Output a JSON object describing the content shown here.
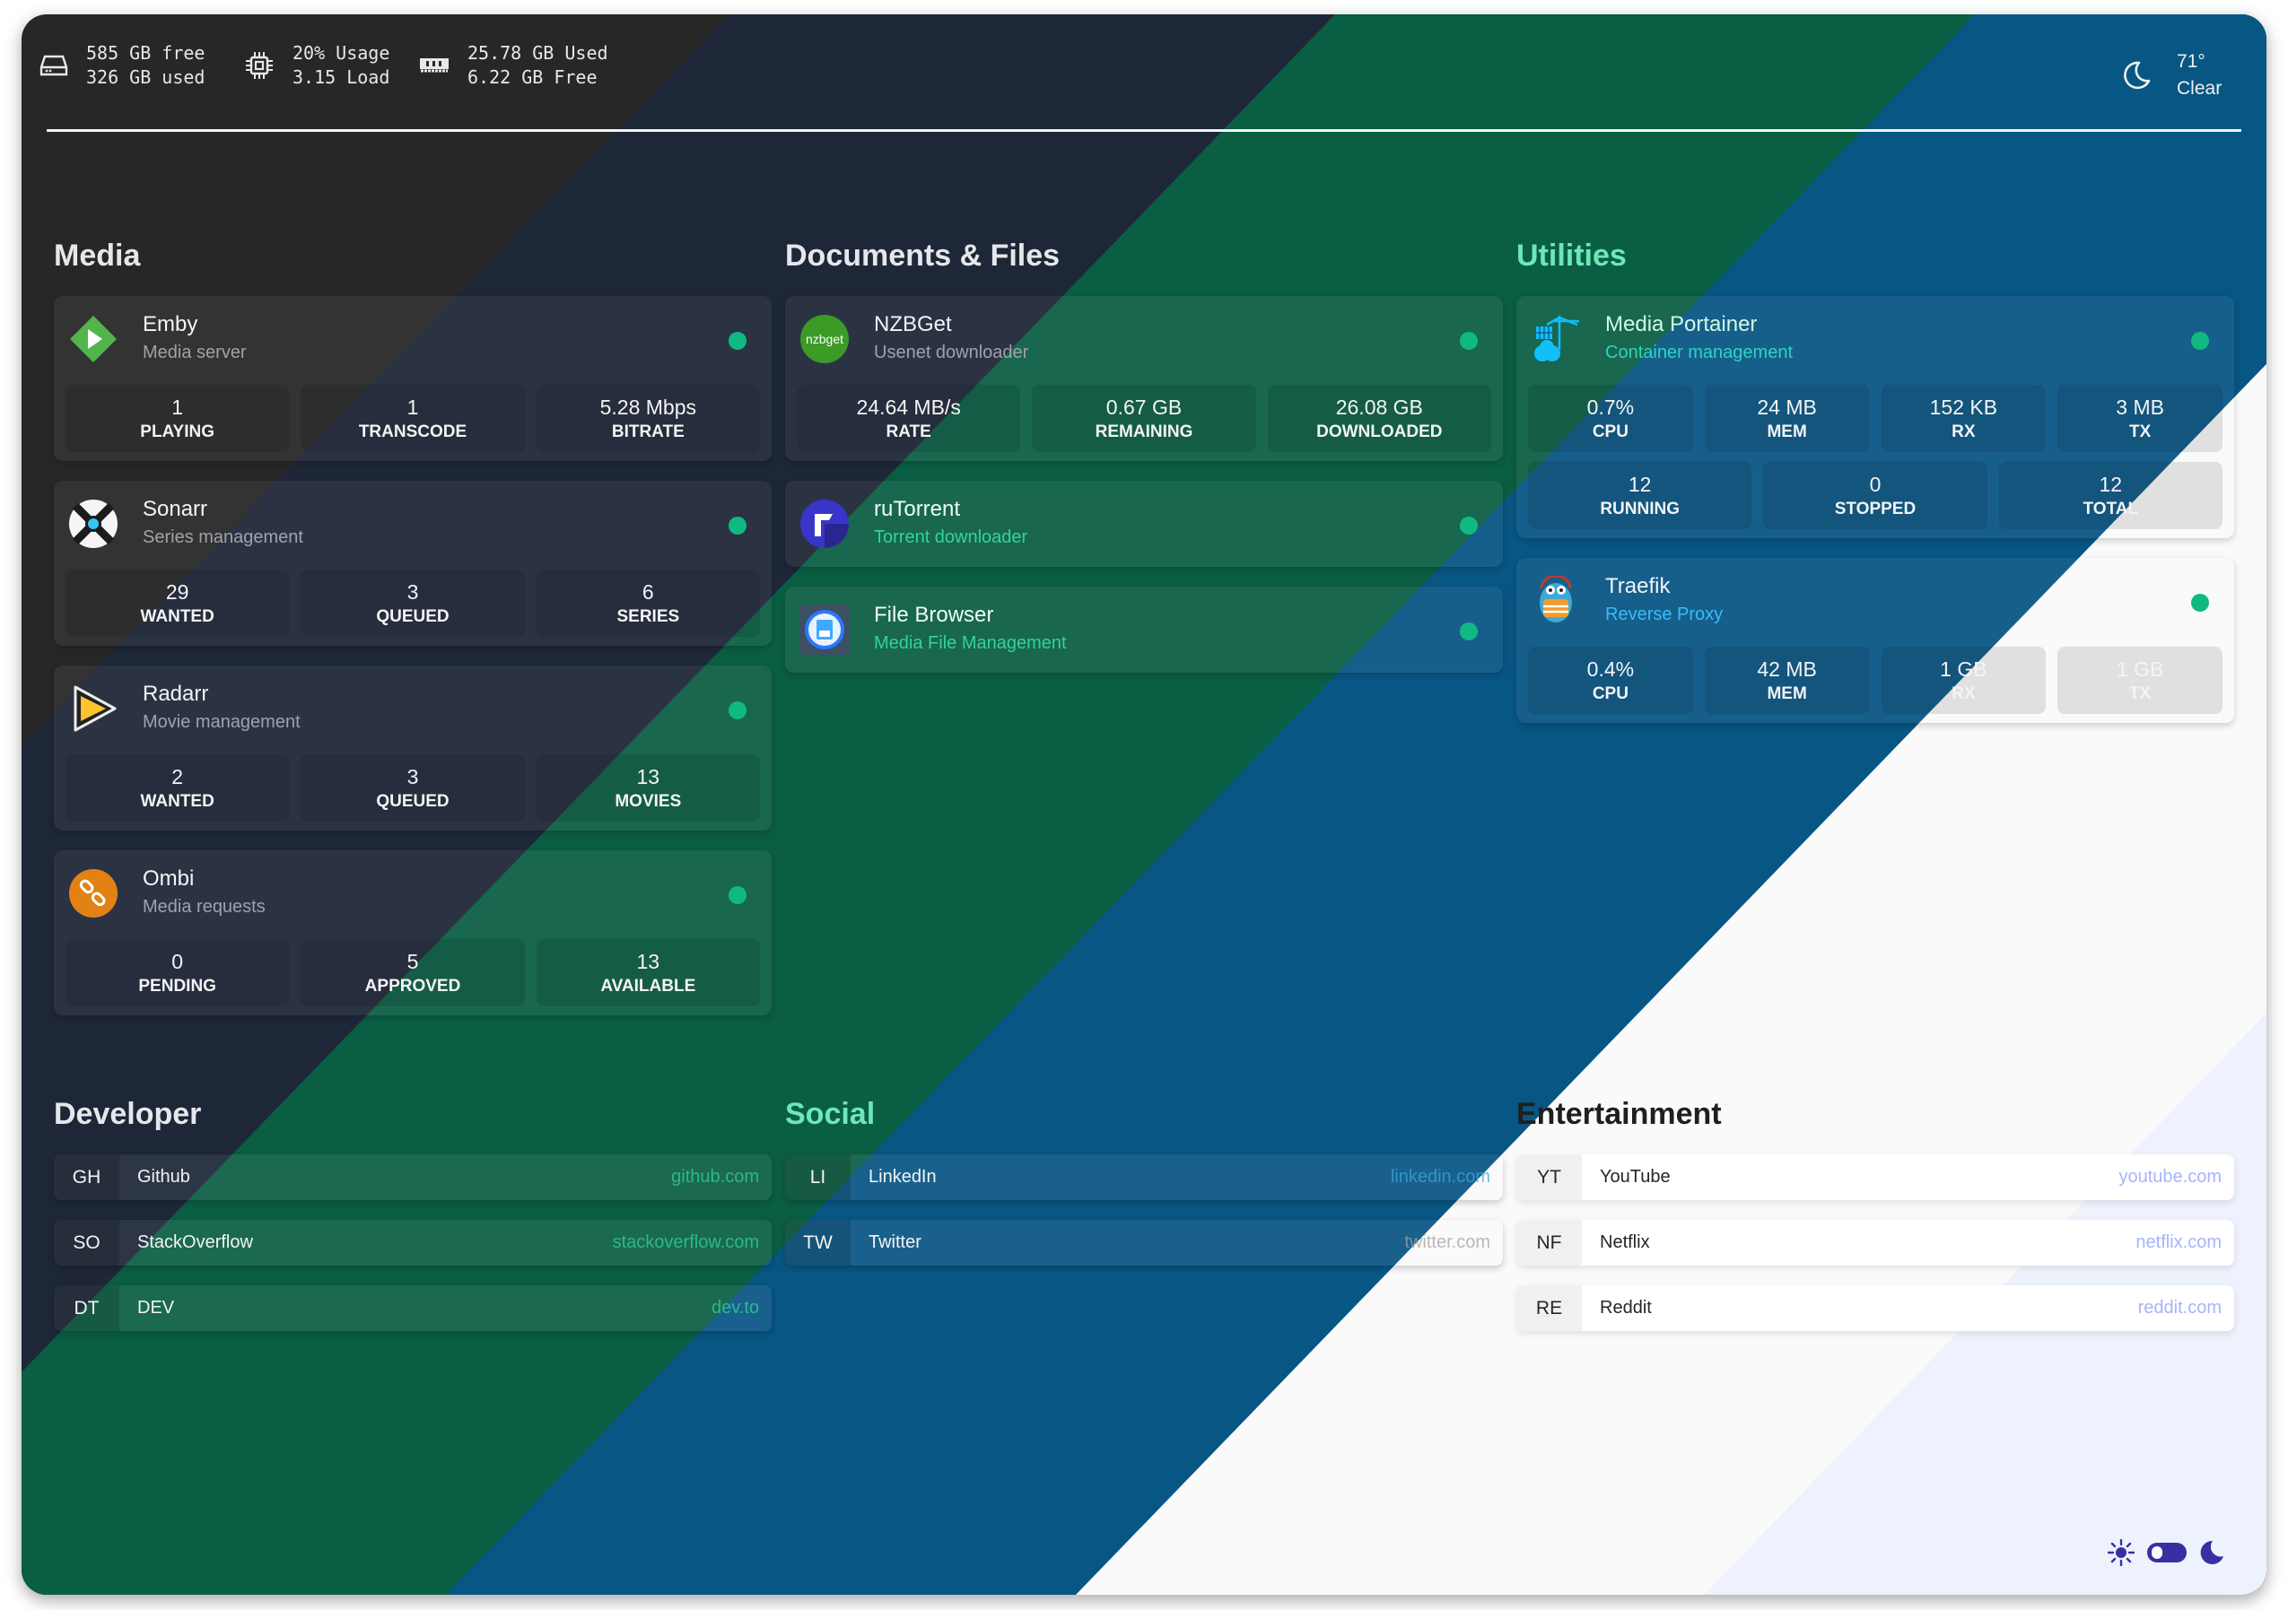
{
  "header": {
    "disk": {
      "icon": "hard-drive-icon",
      "line1": "585 GB free",
      "line2": "326 GB used"
    },
    "cpu": {
      "icon": "cpu-chip-icon",
      "line1": "20% Usage",
      "line2": "3.15 Load"
    },
    "memory": {
      "icon": "memory-icon",
      "line1": "25.78 GB Used",
      "line2": "6.22 GB Free"
    },
    "weather": {
      "icon": "moon-outline-icon",
      "temperature": "71°",
      "condition": "Clear"
    }
  },
  "colors": {
    "background_bands": [
      "#272727",
      "#1e293b",
      "#065f46",
      "#075985",
      "#fafafa",
      "#eef2ff"
    ],
    "status_online": "#10b981",
    "mint_accent": "#6ee7b7",
    "sky_accent": "#38bdf8",
    "indigo_accent": "#3730a3"
  },
  "sections": {
    "media": {
      "title": "Media",
      "services": [
        {
          "name": "Emby",
          "description": "Media server",
          "icon": "emby-icon",
          "status": "online",
          "stat_rows": [
            [
              {
                "value": "1",
                "label": "PLAYING"
              },
              {
                "value": "1",
                "label": "TRANSCODE"
              },
              {
                "value": "5.28 Mbps",
                "label": "BITRATE"
              }
            ]
          ]
        },
        {
          "name": "Sonarr",
          "description": "Series management",
          "icon": "sonarr-icon",
          "status": "online",
          "stat_rows": [
            [
              {
                "value": "29",
                "label": "WANTED"
              },
              {
                "value": "3",
                "label": "QUEUED"
              },
              {
                "value": "6",
                "label": "SERIES"
              }
            ]
          ]
        },
        {
          "name": "Radarr",
          "description": "Movie management",
          "icon": "radarr-icon",
          "status": "online",
          "stat_rows": [
            [
              {
                "value": "2",
                "label": "WANTED"
              },
              {
                "value": "3",
                "label": "QUEUED"
              },
              {
                "value": "13",
                "label": "MOVIES"
              }
            ]
          ]
        },
        {
          "name": "Ombi",
          "description": "Media requests",
          "icon": "ombi-icon",
          "status": "online",
          "stat_rows": [
            [
              {
                "value": "0",
                "label": "PENDING"
              },
              {
                "value": "5",
                "label": "APPROVED"
              },
              {
                "value": "13",
                "label": "AVAILABLE"
              }
            ]
          ]
        }
      ]
    },
    "documents": {
      "title": "Documents & Files",
      "services": [
        {
          "name": "NZBGet",
          "description": "Usenet downloader",
          "icon": "nzbget-icon",
          "logo_text": "nzbget",
          "status": "online",
          "stat_rows": [
            [
              {
                "value": "24.64 MB/s",
                "label": "RATE"
              },
              {
                "value": "0.67 GB",
                "label": "REMAINING"
              },
              {
                "value": "26.08 GB",
                "label": "DOWNLOADED"
              }
            ]
          ]
        },
        {
          "name": "ruTorrent",
          "description": "Torrent downloader",
          "icon": "rutorrent-icon",
          "status": "online",
          "stat_rows": []
        },
        {
          "name": "File Browser",
          "description": "Media File Management",
          "icon": "file-browser-icon",
          "status": "online",
          "stat_rows": []
        }
      ]
    },
    "utilities": {
      "title": "Utilities",
      "services": [
        {
          "name": "Media Portainer",
          "description": "Container management",
          "icon": "portainer-icon",
          "status": "online",
          "stat_rows": [
            [
              {
                "value": "0.7%",
                "label": "CPU"
              },
              {
                "value": "24 MB",
                "label": "MEM"
              },
              {
                "value": "152 KB",
                "label": "RX"
              },
              {
                "value": "3 MB",
                "label": "TX"
              }
            ],
            [
              {
                "value": "12",
                "label": "RUNNING"
              },
              {
                "value": "0",
                "label": "STOPPED"
              },
              {
                "value": "12",
                "label": "TOTAL"
              }
            ]
          ]
        },
        {
          "name": "Traefik",
          "description": "Reverse Proxy",
          "icon": "traefik-icon",
          "status": "online",
          "stat_rows": [
            [
              {
                "value": "0.4%",
                "label": "CPU"
              },
              {
                "value": "42 MB",
                "label": "MEM"
              },
              {
                "value": "1 GB",
                "label": "RX"
              },
              {
                "value": "1 GB",
                "label": "TX"
              }
            ]
          ]
        }
      ]
    },
    "developer": {
      "title": "Developer",
      "links": [
        {
          "abbr": "GH",
          "name": "Github",
          "url": "github.com"
        },
        {
          "abbr": "SO",
          "name": "StackOverflow",
          "url": "stackoverflow.com"
        },
        {
          "abbr": "DT",
          "name": "DEV",
          "url": "dev.to"
        }
      ]
    },
    "social": {
      "title": "Social",
      "links": [
        {
          "abbr": "LI",
          "name": "LinkedIn",
          "url": "linkedin.com"
        },
        {
          "abbr": "TW",
          "name": "Twitter",
          "url": "twitter.com"
        }
      ]
    },
    "entertainment": {
      "title": "Entertainment",
      "links": [
        {
          "abbr": "YT",
          "name": "YouTube",
          "url": "youtube.com"
        },
        {
          "abbr": "NF",
          "name": "Netflix",
          "url": "netflix.com"
        },
        {
          "abbr": "RE",
          "name": "Reddit",
          "url": "reddit.com"
        }
      ]
    }
  },
  "theme_switch": {
    "light_icon": "sun-icon",
    "dark_icon": "moon-icon",
    "mode": "dark"
  }
}
